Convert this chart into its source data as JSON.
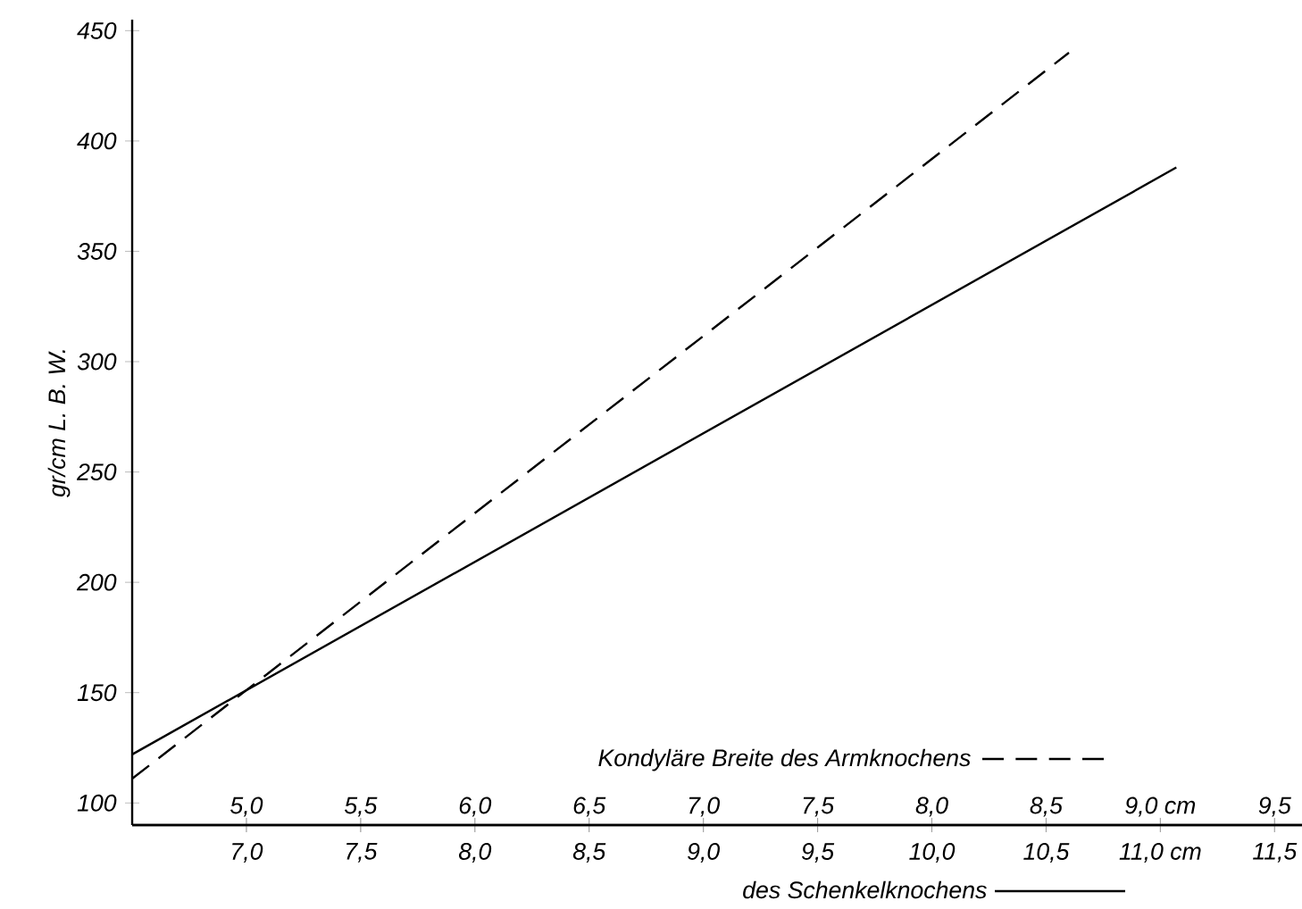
{
  "chart_data": {
    "type": "line",
    "ylabel": "gr/cm L. B. W.",
    "xlabel": "des Schenkelknochens",
    "x2label": "Kondyläre Breite des Armknochens",
    "ylim": [
      90,
      455
    ],
    "yticks": [
      100,
      150,
      200,
      250,
      300,
      350,
      400,
      450
    ],
    "xlim": [
      6.5,
      11.62
    ],
    "xticks": [
      {
        "value": 7.0,
        "label": "7,0"
      },
      {
        "value": 7.5,
        "label": "7,5"
      },
      {
        "value": 8.0,
        "label": "8,0"
      },
      {
        "value": 8.5,
        "label": "8,5"
      },
      {
        "value": 9.0,
        "label": "9,0"
      },
      {
        "value": 9.5,
        "label": "9,5"
      },
      {
        "value": 10.0,
        "label": "10,0"
      },
      {
        "value": 10.5,
        "label": "10,5"
      },
      {
        "value": 11.0,
        "label": "11,0 cm"
      },
      {
        "value": 11.5,
        "label": "11,5"
      }
    ],
    "x2lim": [
      4.5,
      9.62
    ],
    "x2ticks": [
      {
        "value": 5.0,
        "label": "5,0"
      },
      {
        "value": 5.5,
        "label": "5,5"
      },
      {
        "value": 6.0,
        "label": "6,0"
      },
      {
        "value": 6.5,
        "label": "6,5"
      },
      {
        "value": 7.0,
        "label": "7,0"
      },
      {
        "value": 7.5,
        "label": "7,5"
      },
      {
        "value": 8.0,
        "label": "8,0"
      },
      {
        "value": 8.5,
        "label": "8,5"
      },
      {
        "value": 9.0,
        "label": "9,0 cm"
      },
      {
        "value": 9.5,
        "label": "9,5"
      }
    ],
    "marker": "none",
    "series": [
      {
        "color": "#000000",
        "line_style": "solid",
        "x": [
          6.5,
          11.07
        ],
        "values": [
          122,
          388
        ]
      },
      {
        "color": "#000000",
        "line_style": "dashed",
        "axis": "x2",
        "x": [
          4.5,
          8.6
        ],
        "values": [
          111,
          440
        ]
      }
    ]
  }
}
